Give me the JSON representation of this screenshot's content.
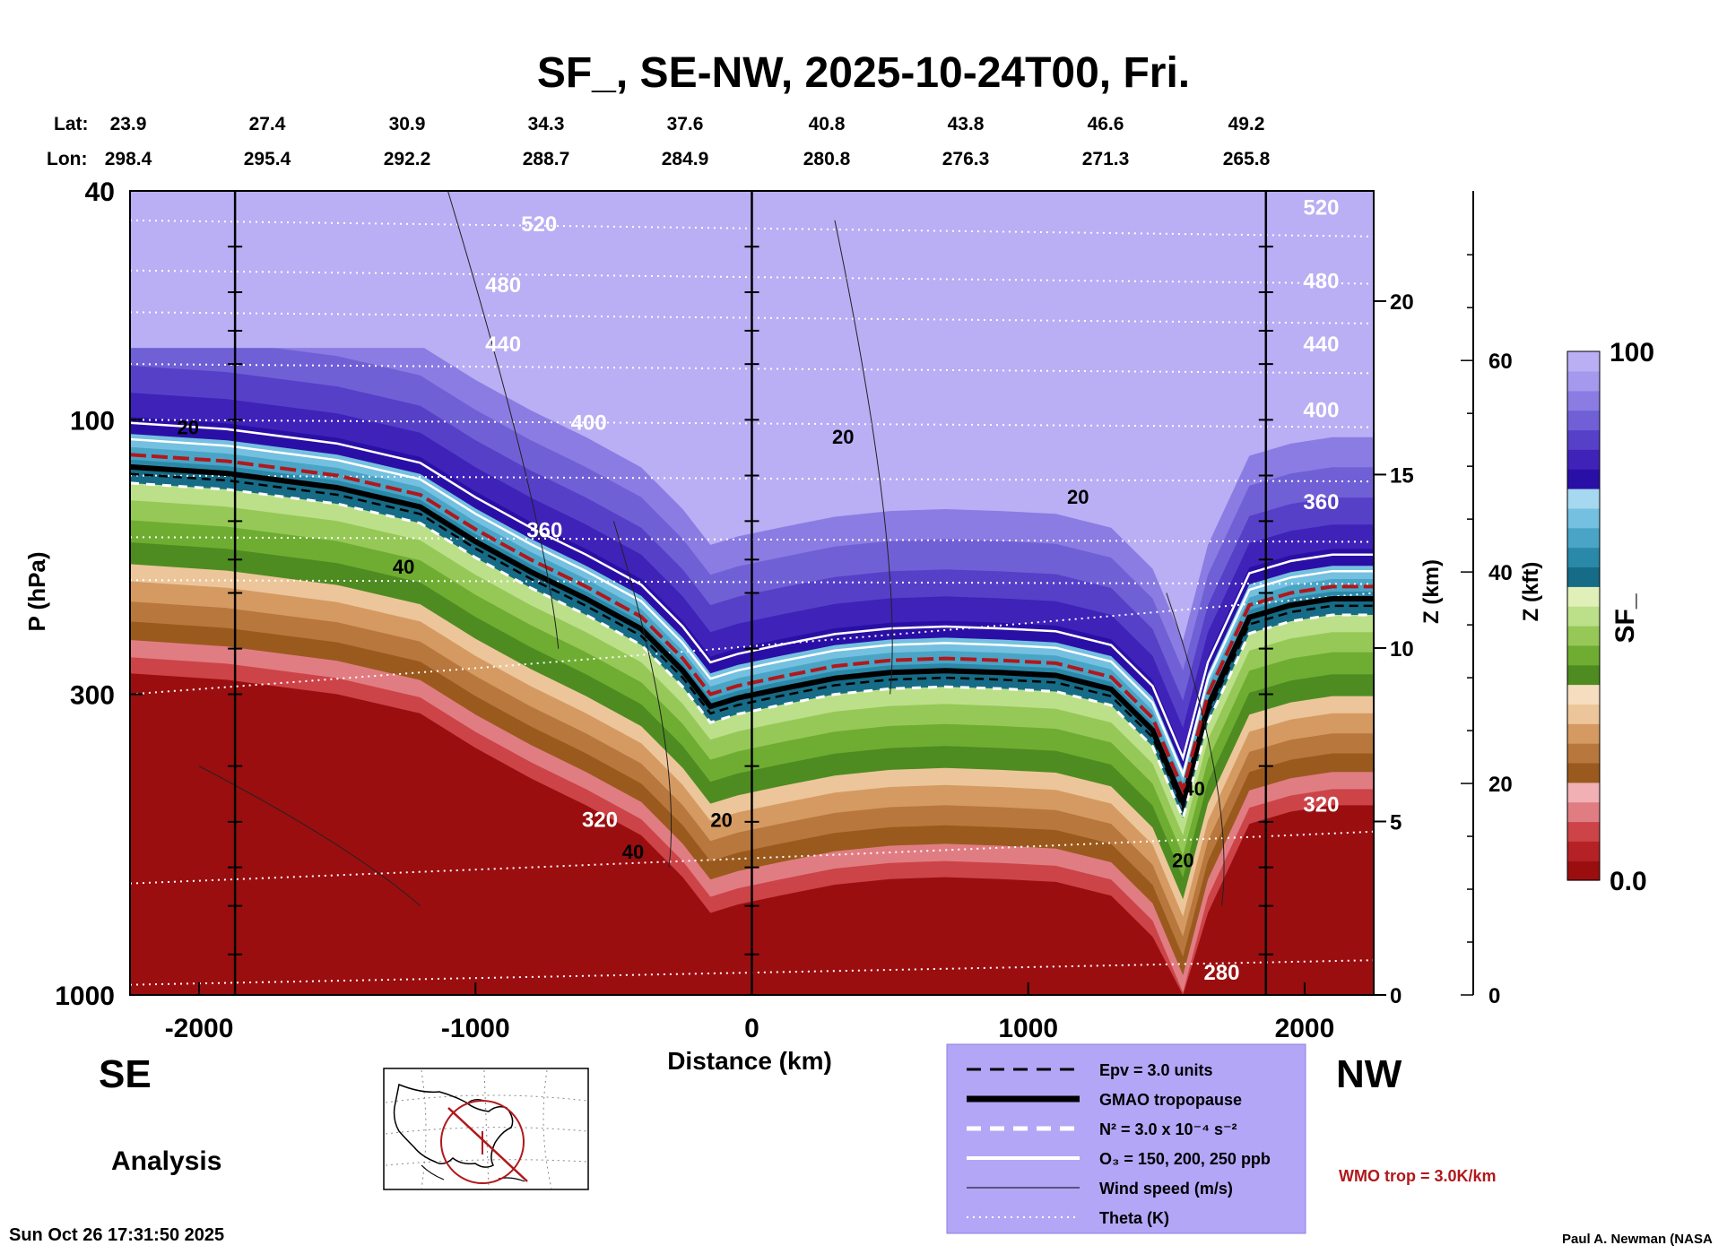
{
  "chart_data": {
    "type": "heatmap",
    "title": "SF_, SE-NW, 2025-10-24T00, Fri.",
    "xlabel": "Distance (km)",
    "ylabel": "P (hPa)",
    "xlim": [
      -2250,
      2250
    ],
    "ylim_pressure": [
      1000,
      40
    ],
    "x_ticks": [
      -2000,
      -1000,
      0,
      1000,
      2000
    ],
    "x_tick_labels": [
      "-2000",
      "-1000",
      "0",
      "1000",
      "2000"
    ],
    "p_ticks": [
      40,
      100,
      300,
      1000
    ],
    "p_tick_labels": [
      "40",
      "100",
      "300",
      "1000"
    ],
    "z_km_label": "Z (km)",
    "z_km_ticks": [
      0,
      5,
      10,
      15,
      20
    ],
    "z_km_tick_labels": [
      "0",
      "5",
      "10",
      "15",
      "20"
    ],
    "z_kft_label": "Z (kft)",
    "z_kft_ticks": [
      0,
      20,
      40,
      60
    ],
    "z_kft_tick_labels": [
      "0",
      "20",
      "40",
      "60"
    ],
    "lat_label": "Lat:",
    "lon_label": "Lon:",
    "lat_values": [
      "23.9",
      "27.4",
      "30.9",
      "34.3",
      "37.6",
      "40.8",
      "43.8",
      "46.6",
      "49.2"
    ],
    "lon_values": [
      "298.4",
      "295.4",
      "292.2",
      "288.7",
      "284.9",
      "280.8",
      "276.3",
      "271.3",
      "265.8"
    ],
    "colorbar": {
      "label": "SF_",
      "min_label": "0.0",
      "max_label": "100",
      "colors": [
        "#9a0e10",
        "#b52226",
        "#cc4448",
        "#e07d83",
        "#f0b0b4",
        "#9a5a1e",
        "#b8773c",
        "#d59a62",
        "#ecc69a",
        "#f6ddbf",
        "#4e8c22",
        "#6fad32",
        "#96c858",
        "#bce08a",
        "#e0f0b8",
        "#166b86",
        "#2a88a8",
        "#4aa4c6",
        "#74c0e0",
        "#a6d8f0",
        "#2a0fa6",
        "#3f22b8",
        "#5640c8",
        "#7060d6",
        "#8a7ce2",
        "#a599ee",
        "#baaef4"
      ]
    },
    "theta_labels": [
      "520",
      "480",
      "440",
      "400",
      "360",
      "320",
      "280",
      "520",
      "480",
      "440",
      "400",
      "360",
      "320"
    ],
    "windspeed_labels": [
      "20",
      "40",
      "40",
      "20",
      "20",
      "20",
      "40",
      "20"
    ],
    "legend": [
      {
        "style": "dashed-black",
        "label": "Epv = 3.0 units"
      },
      {
        "style": "thick-black",
        "label": "GMAO tropopause"
      },
      {
        "style": "dashed-white",
        "label": "N² = 3.0 x 10⁻⁴ s⁻²"
      },
      {
        "style": "solid-white",
        "label": "O₃ = 150, 200, 250 ppb"
      },
      {
        "style": "thin-black",
        "label": "Wind speed (m/s)"
      },
      {
        "style": "dotted-white",
        "label": "Theta (K)"
      }
    ],
    "legend_bg": "#b3a6f7",
    "wmo_label": "WMO trop = 3.0K/km",
    "wmo_color": "#b0181c",
    "left_dir": "SE",
    "right_dir": "NW",
    "analysis_label": "Analysis",
    "timestamp": "Sun Oct 26 17:31:50 2025",
    "credit": "Paul A. Newman (NASA"
  }
}
